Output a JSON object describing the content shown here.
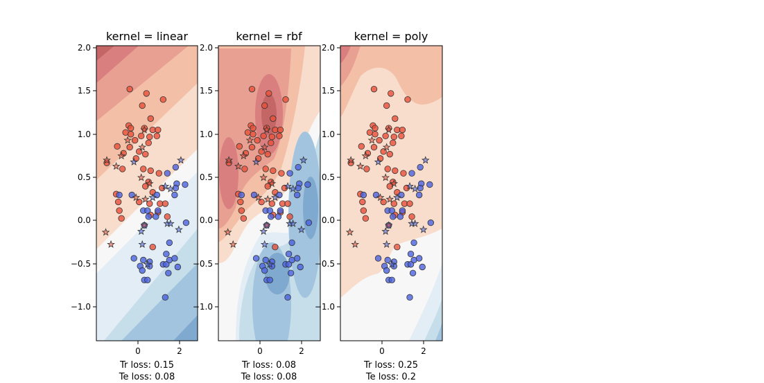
{
  "chart_data": [
    {
      "type": "scatter",
      "title": "kernel = linear",
      "xlabel": [
        "Tr loss: 0.15",
        "Te loss: 0.08"
      ],
      "xlim": [
        -2.0,
        2.85
      ],
      "ylim": [
        -1.38,
        2.02
      ],
      "xticks": [
        0,
        2
      ],
      "yticks": [
        -1.0,
        -0.5,
        0.0,
        0.5,
        1.0,
        1.5,
        2.0
      ],
      "ytick_labels": [
        "−1.0",
        "−0.5",
        "0.0",
        "0.5",
        "1.0",
        "1.5",
        "2.0"
      ],
      "background": "decision-function-contour",
      "train_class_0": [
        [
          -0.4,
          1.52
        ],
        [
          0.4,
          1.47
        ],
        [
          1.2,
          1.4
        ],
        [
          0.2,
          1.33
        ],
        [
          0.6,
          1.18
        ],
        [
          -0.45,
          1.1
        ],
        [
          -0.35,
          1.07
        ],
        [
          0.3,
          1.07
        ],
        [
          0.7,
          1.05
        ],
        [
          0.95,
          1.05
        ],
        [
          -0.6,
          1.02
        ],
        [
          -0.35,
          1.0
        ],
        [
          0.15,
          0.98
        ],
        [
          0.55,
          0.97
        ],
        [
          0.9,
          0.98
        ],
        [
          -0.15,
          0.93
        ],
        [
          0.5,
          0.9
        ],
        [
          -1.0,
          0.86
        ],
        [
          -0.4,
          0.85
        ],
        [
          0.05,
          0.8
        ],
        [
          -0.7,
          0.78
        ],
        [
          0.35,
          0.77
        ],
        [
          -0.1,
          0.72
        ],
        [
          -1.5,
          0.67
        ],
        [
          -0.75,
          0.6
        ],
        [
          0.25,
          0.6
        ],
        [
          0.6,
          0.58
        ],
        [
          1.0,
          0.55
        ],
        [
          0.5,
          0.45
        ],
        [
          0.35,
          0.4
        ],
        [
          1.15,
          0.38
        ],
        [
          0.7,
          0.33
        ],
        [
          -1.05,
          0.31
        ],
        [
          -0.95,
          0.22
        ],
        [
          0.05,
          0.22
        ],
        [
          0.55,
          0.2
        ],
        [
          1.05,
          0.2
        ],
        [
          1.3,
          0.2
        ],
        [
          -0.9,
          0.12
        ],
        [
          0.95,
          0.1
        ],
        [
          0.6,
          0.07
        ],
        [
          1.4,
          0.05
        ],
        [
          -0.8,
          0.03
        ],
        [
          0.7,
          -0.3
        ]
      ],
      "train_class_1": [
        [
          -0.9,
          0.3
        ],
        [
          -0.3,
          0.3
        ],
        [
          0.9,
          0.3
        ],
        [
          0.25,
          0.12
        ],
        [
          0.45,
          0.12
        ],
        [
          0.95,
          0.12
        ],
        [
          0.85,
          0.05
        ],
        [
          0.3,
          -0.05
        ],
        [
          0.5,
          0.05
        ],
        [
          1.8,
          0.62
        ],
        [
          1.4,
          0.55
        ],
        [
          1.85,
          0.43
        ],
        [
          2.25,
          0.42
        ],
        [
          1.8,
          0.38
        ],
        [
          1.75,
          0.3
        ],
        [
          0.25,
          -0.45
        ],
        [
          1.5,
          -0.25
        ],
        [
          -0.2,
          -0.43
        ],
        [
          0.55,
          -0.47
        ],
        [
          0.1,
          -0.52
        ],
        [
          0.55,
          -0.52
        ],
        [
          1.2,
          -0.5
        ],
        [
          1.35,
          -0.5
        ],
        [
          1.5,
          -0.45
        ],
        [
          1.75,
          -0.43
        ],
        [
          1.9,
          -0.53
        ],
        [
          0.2,
          -0.57
        ],
        [
          1.45,
          -0.6
        ],
        [
          0.3,
          -0.68
        ],
        [
          0.45,
          -0.68
        ],
        [
          1.3,
          -0.88
        ],
        [
          1.35,
          -0.38
        ],
        [
          2.3,
          -0.02
        ]
      ],
      "test_class_0": [
        [
          0.3,
          1.05
        ],
        [
          -0.5,
          0.93
        ],
        [
          0.2,
          0.85
        ],
        [
          -0.8,
          0.75
        ],
        [
          -1.5,
          0.7
        ],
        [
          -1.05,
          0.63
        ],
        [
          0.15,
          0.5
        ],
        [
          0.55,
          0.43
        ],
        [
          -0.1,
          0.27
        ],
        [
          0.35,
          0.25
        ],
        [
          -1.55,
          -0.13
        ],
        [
          -1.3,
          -0.27
        ],
        [
          0.3,
          -0.05
        ]
      ],
      "test_class_1": [
        [
          2.05,
          0.7
        ],
        [
          -0.2,
          0.68
        ],
        [
          1.3,
          0.4
        ],
        [
          1.55,
          0.37
        ],
        [
          0.7,
          0.27
        ],
        [
          0.15,
          -0.12
        ],
        [
          1.4,
          -0.03
        ],
        [
          1.55,
          -0.03
        ],
        [
          0.2,
          -0.27
        ],
        [
          1.95,
          -0.1
        ],
        [
          0.45,
          -0.5
        ]
      ]
    },
    {
      "type": "scatter",
      "title": "kernel = rbf",
      "xlabel": [
        "Tr loss: 0.08",
        "Te loss: 0.08"
      ],
      "xlim": [
        -2.0,
        2.85
      ],
      "ylim": [
        -1.38,
        2.02
      ],
      "xticks": [
        0,
        2
      ],
      "yticks": [
        -1.0,
        -0.5,
        0.0,
        0.5,
        1.0,
        1.5,
        2.0
      ],
      "ytick_labels": [
        "−1.0",
        "−0.5",
        "0.0",
        "0.5",
        "1.0",
        "1.5",
        "2.0"
      ],
      "background": "decision-function-contour",
      "train_class_0": "same points as kernel = linear",
      "train_class_1": "same points as kernel = linear",
      "test_class_0": "same points as kernel = linear",
      "test_class_1": "same points as kernel = linear"
    },
    {
      "type": "scatter",
      "title": "kernel = poly",
      "xlabel": [
        "Tr loss: 0.25",
        "Te loss: 0.2"
      ],
      "xlim": [
        -2.0,
        2.85
      ],
      "ylim": [
        -1.38,
        2.02
      ],
      "xticks": [
        0,
        2
      ],
      "yticks": [
        -1.0,
        -0.5,
        0.0,
        0.5,
        1.0,
        1.5,
        2.0
      ],
      "ytick_labels": [
        "−1.0",
        "−0.5",
        "0.0",
        "0.5",
        "1.0",
        "1.5",
        "2.0"
      ],
      "background": "decision-function-contour",
      "train_class_0": "same points as kernel = linear",
      "train_class_1": "same points as kernel = linear",
      "test_class_0": "same points as kernel = linear",
      "test_class_1": "same points as kernel = linear"
    }
  ],
  "colors": {
    "class_0": "#e8503a",
    "class_1": "#4b63e0",
    "marker_edge": "#333333",
    "red_levels": [
      "#f9ddcc",
      "#f3bfa7",
      "#e8a093",
      "#d97f7f",
      "#c46566"
    ],
    "blue_levels": [
      "#e3edf5",
      "#c6ddea",
      "#a2c4de",
      "#7fa9cf",
      "#5b8dc0"
    ],
    "neutral": "#f7f7f7"
  },
  "markers": {
    "train": "circle",
    "test": "star"
  }
}
